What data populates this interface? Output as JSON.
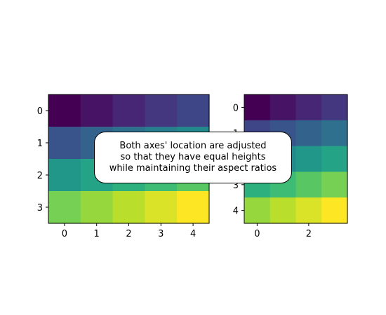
{
  "chart_data": [
    {
      "type": "heatmap",
      "colormap": "viridis",
      "rows": 4,
      "cols": 5,
      "values": [
        [
          0,
          1,
          2,
          3,
          4
        ],
        [
          5,
          6,
          7,
          8,
          9
        ],
        [
          10,
          11,
          12,
          13,
          14
        ],
        [
          15,
          16,
          17,
          18,
          19
        ]
      ],
      "xticks": [
        0,
        1,
        2,
        3,
        4
      ],
      "yticks": [
        0,
        1,
        2,
        3
      ],
      "xlim": [
        -0.5,
        4.5
      ],
      "ylim": [
        3.5,
        -0.5
      ]
    },
    {
      "type": "heatmap",
      "colormap": "viridis",
      "rows": 5,
      "cols": 4,
      "values": [
        [
          0,
          1,
          2,
          3
        ],
        [
          4,
          5,
          6,
          7
        ],
        [
          8,
          9,
          10,
          11
        ],
        [
          12,
          13,
          14,
          15
        ],
        [
          16,
          17,
          18,
          19
        ]
      ],
      "xticks": [
        0,
        2
      ],
      "yticks": [
        0,
        1,
        2,
        3,
        4
      ],
      "xlim": [
        -0.5,
        3.5
      ],
      "ylim": [
        4.5,
        -0.5
      ]
    }
  ],
  "annotation": {
    "lines": [
      "Both axes' location are adjusted",
      "so that they have equal heights",
      "while maintaining their aspect ratios"
    ]
  }
}
